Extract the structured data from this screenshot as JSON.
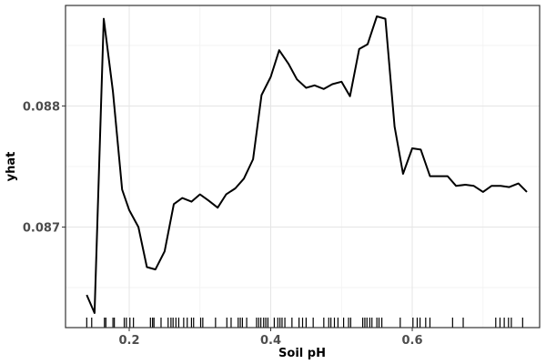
{
  "chart_data": {
    "type": "line",
    "xlabel": "Soil pH",
    "ylabel": "yhat",
    "xlim": [
      0.11,
      0.78
    ],
    "ylim": [
      0.08617,
      0.08883
    ],
    "x_ticks": [
      {
        "value": 0.2,
        "label": "0.2"
      },
      {
        "value": 0.4,
        "label": "0.4"
      },
      {
        "value": 0.6,
        "label": "0.6"
      }
    ],
    "y_ticks": [
      {
        "value": 0.087,
        "label": "0.087"
      },
      {
        "value": 0.088,
        "label": "0.088"
      }
    ],
    "grid": true,
    "series": [
      {
        "color": "#000000",
        "points": [
          [
            0.14,
            0.08644
          ],
          [
            0.151,
            0.08629
          ],
          [
            0.164,
            0.08872
          ],
          [
            0.177,
            0.08812
          ],
          [
            0.19,
            0.08731
          ],
          [
            0.2,
            0.08714
          ],
          [
            0.213,
            0.087
          ],
          [
            0.225,
            0.08667
          ],
          [
            0.237,
            0.08665
          ],
          [
            0.25,
            0.0868
          ],
          [
            0.263,
            0.08719
          ],
          [
            0.275,
            0.08724
          ],
          [
            0.288,
            0.08721
          ],
          [
            0.3,
            0.08727
          ],
          [
            0.312,
            0.08722
          ],
          [
            0.325,
            0.08716
          ],
          [
            0.337,
            0.08727
          ],
          [
            0.35,
            0.08732
          ],
          [
            0.362,
            0.0874
          ],
          [
            0.375,
            0.08756
          ],
          [
            0.387,
            0.08809
          ],
          [
            0.4,
            0.08824
          ],
          [
            0.412,
            0.08846
          ],
          [
            0.425,
            0.08835
          ],
          [
            0.437,
            0.08822
          ],
          [
            0.45,
            0.08815
          ],
          [
            0.462,
            0.08817
          ],
          [
            0.475,
            0.08814
          ],
          [
            0.487,
            0.08818
          ],
          [
            0.5,
            0.0882
          ],
          [
            0.512,
            0.08808
          ],
          [
            0.525,
            0.08847
          ],
          [
            0.537,
            0.08851
          ],
          [
            0.55,
            0.08874
          ],
          [
            0.562,
            0.08872
          ],
          [
            0.575,
            0.08783
          ],
          [
            0.587,
            0.08744
          ],
          [
            0.6,
            0.08765
          ],
          [
            0.612,
            0.08764
          ],
          [
            0.625,
            0.08742
          ],
          [
            0.637,
            0.08742
          ],
          [
            0.65,
            0.08742
          ],
          [
            0.662,
            0.08734
          ],
          [
            0.675,
            0.08735
          ],
          [
            0.687,
            0.08734
          ],
          [
            0.7,
            0.08729
          ],
          [
            0.712,
            0.08734
          ],
          [
            0.725,
            0.08734
          ],
          [
            0.737,
            0.08733
          ],
          [
            0.75,
            0.08736
          ],
          [
            0.762,
            0.08729
          ]
        ]
      }
    ],
    "rug_x": [
      0.14,
      0.147,
      0.165,
      0.167,
      0.177,
      0.179,
      0.193,
      0.196,
      0.201,
      0.206,
      0.23,
      0.233,
      0.235,
      0.245,
      0.255,
      0.259,
      0.262,
      0.266,
      0.27,
      0.277,
      0.282,
      0.288,
      0.291,
      0.301,
      0.304,
      0.322,
      0.338,
      0.344,
      0.354,
      0.357,
      0.36,
      0.366,
      0.38,
      0.383,
      0.386,
      0.39,
      0.393,
      0.396,
      0.405,
      0.41,
      0.413,
      0.416,
      0.42,
      0.43,
      0.44,
      0.445,
      0.45,
      0.46,
      0.475,
      0.482,
      0.485,
      0.49,
      0.495,
      0.503,
      0.51,
      0.513,
      0.53,
      0.533,
      0.536,
      0.54,
      0.543,
      0.55,
      0.553,
      0.557,
      0.583,
      0.601,
      0.607,
      0.611,
      0.619,
      0.625,
      0.657,
      0.672,
      0.718,
      0.724,
      0.73,
      0.736,
      0.74,
      0.756
    ]
  }
}
